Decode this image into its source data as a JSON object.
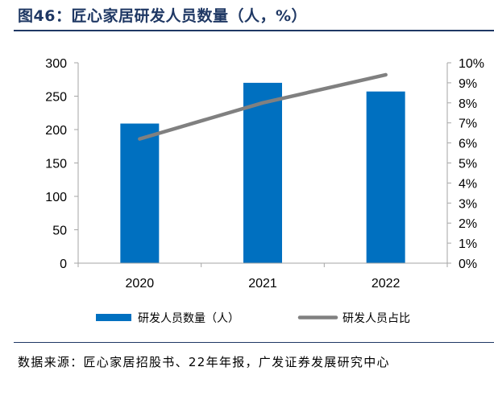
{
  "title": "图46：匠心家居研发人员数量（人，%）",
  "chart_data": {
    "type": "bar",
    "categories": [
      "2020",
      "2021",
      "2022"
    ],
    "series": [
      {
        "name": "研发人员数量（人）",
        "type": "bar",
        "axis": "left",
        "color": "#0070c0",
        "values": [
          209,
          270,
          257
        ]
      },
      {
        "name": "研发人员占比",
        "type": "line",
        "axis": "right",
        "color": "#808080",
        "values": [
          6.2,
          8.0,
          9.4
        ]
      }
    ],
    "y_left": {
      "ylim": [
        0,
        300
      ],
      "ticks": [
        "0",
        "50",
        "100",
        "150",
        "200",
        "250",
        "300"
      ]
    },
    "y_right": {
      "ylim": [
        0,
        10
      ],
      "ticks": [
        "0%",
        "1%",
        "2%",
        "3%",
        "4%",
        "5%",
        "6%",
        "7%",
        "8%",
        "9%",
        "10%"
      ]
    },
    "grid": false,
    "legend": "bottom"
  },
  "source": "数据来源：匠心家居招股书、22年年报，广发证券发展研究中心"
}
